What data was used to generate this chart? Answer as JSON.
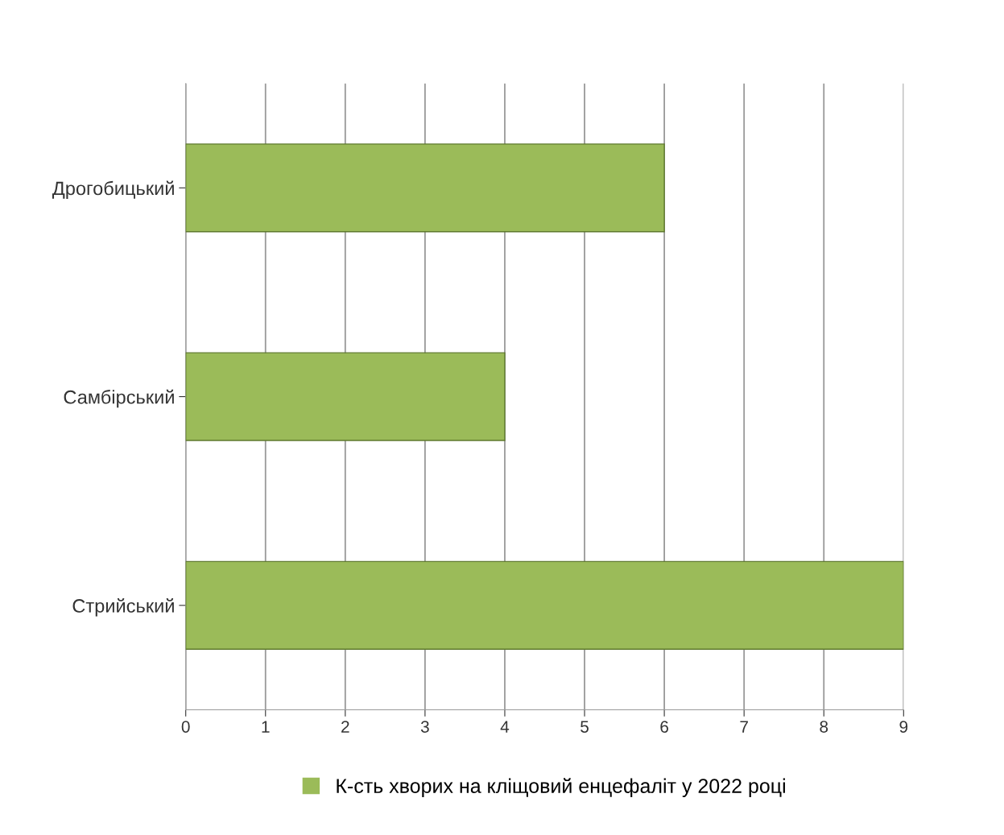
{
  "chart_data": {
    "type": "bar",
    "orientation": "horizontal",
    "categories": [
      "Дрогобицький",
      "Самбірський",
      "Стрийський"
    ],
    "series": [
      {
        "name": "К-сть хворих на кліщовий енцефаліт у 2022 році",
        "color": "#9bbb59",
        "values": [
          6,
          4,
          9
        ]
      }
    ],
    "xlim": [
      0,
      9
    ],
    "xticks": [
      0,
      1,
      2,
      3,
      4,
      5,
      6,
      7,
      8,
      9
    ],
    "grid": "x",
    "legend": "bottom"
  }
}
